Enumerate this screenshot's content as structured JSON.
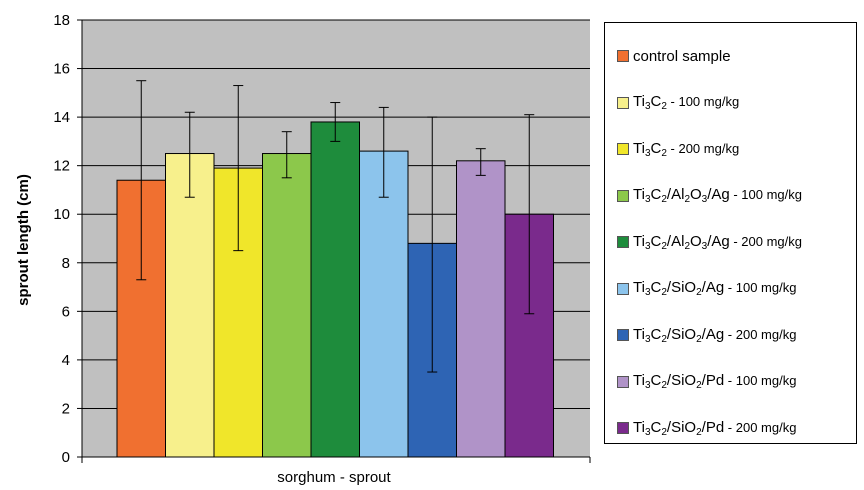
{
  "chart_data": {
    "type": "bar",
    "ylabel": "sprout length (cm)",
    "categories": [
      "sorghum - sprout"
    ],
    "ylim": [
      0,
      18
    ],
    "yticks": [
      0,
      2,
      4,
      6,
      8,
      10,
      12,
      14,
      16,
      18
    ],
    "grid": true,
    "legend_position": "right",
    "series": [
      {
        "name": "control sample",
        "label_parts": [
          {
            "t": "control sample"
          }
        ],
        "value": 11.4,
        "err_low": 7.3,
        "err_high": 15.5,
        "color": "#f07030"
      },
      {
        "name": "Ti3C2 - 100 mg/kg",
        "label_parts": [
          {
            "t": "Ti"
          },
          {
            "s": "3"
          },
          {
            "t": "C"
          },
          {
            "s": "2"
          },
          {
            "t": " - 100 mg/kg",
            "small": true
          }
        ],
        "value": 12.5,
        "err_low": 10.7,
        "err_high": 14.2,
        "color": "#f7f08c"
      },
      {
        "name": "Ti3C2 - 200 mg/kg",
        "label_parts": [
          {
            "t": "Ti"
          },
          {
            "s": "3"
          },
          {
            "t": "C"
          },
          {
            "s": "2"
          },
          {
            "t": " - 200 mg/kg",
            "small": true
          }
        ],
        "value": 11.9,
        "err_low": 8.5,
        "err_high": 15.3,
        "color": "#f0e62a"
      },
      {
        "name": "Ti3C2/Al2O3/Ag - 100 mg/kg",
        "label_parts": [
          {
            "t": "Ti"
          },
          {
            "s": "3"
          },
          {
            "t": "C"
          },
          {
            "s": "2"
          },
          {
            "t": "/Al"
          },
          {
            "s": "2"
          },
          {
            "t": "O"
          },
          {
            "s": "3"
          },
          {
            "t": "/Ag"
          },
          {
            "t": " - 100 mg/kg",
            "small": true
          }
        ],
        "value": 12.5,
        "err_low": 11.5,
        "err_high": 13.4,
        "color": "#8cc84b"
      },
      {
        "name": "Ti3C2/Al2O3/Ag - 200 mg/kg",
        "label_parts": [
          {
            "t": "Ti"
          },
          {
            "s": "3"
          },
          {
            "t": "C"
          },
          {
            "s": "2"
          },
          {
            "t": "/Al"
          },
          {
            "s": "2"
          },
          {
            "t": "O"
          },
          {
            "s": "3"
          },
          {
            "t": "/Ag"
          },
          {
            "t": " - 200 mg/kg",
            "small": true
          }
        ],
        "value": 13.8,
        "err_low": 13.0,
        "err_high": 14.6,
        "color": "#1e8c3c"
      },
      {
        "name": "Ti3C2/SiO2/Ag - 100 mg/kg",
        "label_parts": [
          {
            "t": "Ti"
          },
          {
            "s": "3"
          },
          {
            "t": "C"
          },
          {
            "s": "2"
          },
          {
            "t": "/SiO"
          },
          {
            "s": "2"
          },
          {
            "t": "/Ag"
          },
          {
            "t": " - 100 mg/kg",
            "small": true
          }
        ],
        "value": 12.6,
        "err_low": 10.7,
        "err_high": 14.4,
        "color": "#8cc4ec"
      },
      {
        "name": "Ti3C2/SiO2/Ag - 200 mg/kg",
        "label_parts": [
          {
            "t": "Ti"
          },
          {
            "s": "3"
          },
          {
            "t": "C"
          },
          {
            "s": "2"
          },
          {
            "t": "/SiO"
          },
          {
            "s": "2"
          },
          {
            "t": "/Ag"
          },
          {
            "t": " - 200 mg/kg",
            "small": true
          }
        ],
        "value": 8.8,
        "err_low": 3.5,
        "err_high": 14.0,
        "color": "#2e64b4"
      },
      {
        "name": "Ti3C2/SiO2/Pd - 100 mg/kg",
        "label_parts": [
          {
            "t": "Ti"
          },
          {
            "s": "3"
          },
          {
            "t": "C"
          },
          {
            "s": "2"
          },
          {
            "t": "/SiO"
          },
          {
            "s": "2"
          },
          {
            "t": "/Pd"
          },
          {
            "t": " - 100 mg/kg",
            "small": true
          }
        ],
        "value": 12.2,
        "err_low": 11.6,
        "err_high": 12.7,
        "color": "#b093c8"
      },
      {
        "name": "Ti3C2/SiO2/Pd - 200 mg/kg",
        "label_parts": [
          {
            "t": "Ti"
          },
          {
            "s": "3"
          },
          {
            "t": "C"
          },
          {
            "s": "2"
          },
          {
            "t": "/SiO"
          },
          {
            "s": "2"
          },
          {
            "t": "/Pd"
          },
          {
            "t": " - 200 mg/kg",
            "small": true
          }
        ],
        "value": 10.0,
        "err_low": 5.9,
        "err_high": 14.1,
        "color": "#7a2a8c"
      }
    ],
    "plot_background": "#c0c0c0"
  }
}
